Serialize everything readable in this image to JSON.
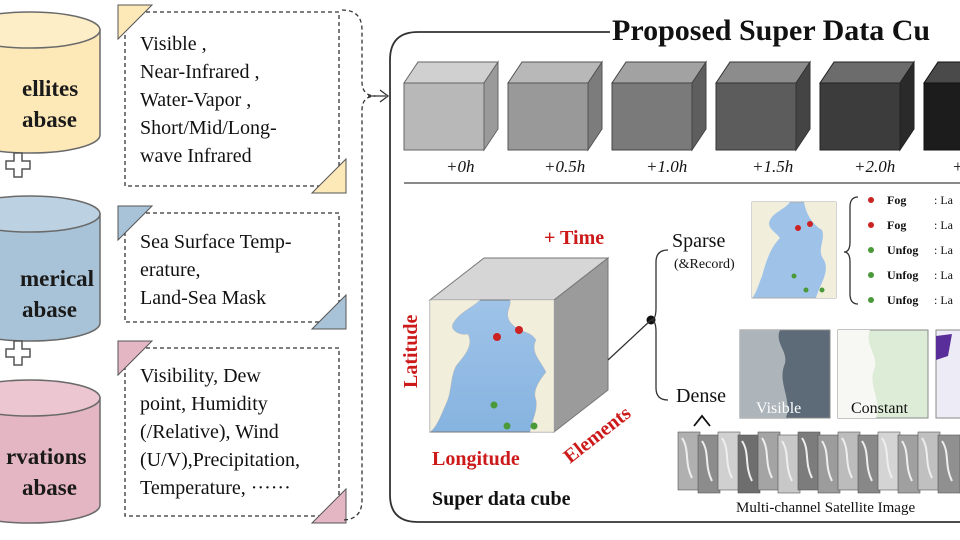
{
  "databases": [
    {
      "line1": "ellites",
      "line2": "abase",
      "color": "#fde8b8"
    },
    {
      "line1": "merical",
      "line2": "abase",
      "color": "#a8c3d8"
    },
    {
      "line1": "rvations",
      "line2": "abase",
      "color": "#e4b5c2"
    }
  ],
  "satellite_notes": [
    "Visible ,",
    "Near-Infrared ,",
    "Water-Vapor ,",
    "Short/Mid/Long-",
    "wave Infrared"
  ],
  "numerical_notes": [
    "Sea Surface Temp-",
    "erature,",
    "Land-Sea Mask"
  ],
  "observation_notes": [
    "Visibility, Dew",
    "point, Humidity",
    "(/Relative), Wind",
    "(U/V),Precipitation,",
    "Temperature, ······"
  ],
  "panel": {
    "title": "Proposed Super Data Cu",
    "time_labels": [
      "+0h",
      "+0.5h",
      "+1.0h",
      "+1.5h",
      "+2.0h",
      "+"
    ],
    "cube_axes": {
      "time": "+ Time",
      "latitude": "Latitude",
      "longitude": "Longitude",
      "elements": "Elements"
    },
    "cube_caption": "Super data cube",
    "sparse_label": "Sparse",
    "sparse_sub": "(&Record)",
    "dense_label": "Dense",
    "records": [
      {
        "label": "Fog",
        "value": ": La",
        "color": "#cc2222"
      },
      {
        "label": "Fog",
        "value": ": La",
        "color": "#cc2222"
      },
      {
        "label": "Unfog",
        "value": ": La",
        "color": "#4a9a3a"
      },
      {
        "label": "Unfog",
        "value": ": La",
        "color": "#4a9a3a"
      },
      {
        "label": "Unfog",
        "value": ": La",
        "color": "#4a9a3a"
      }
    ],
    "channel_labels": [
      "Visible",
      "Constant"
    ],
    "satellite_images_caption": "Multi-channel Satellite Image"
  },
  "colors": {
    "fog": "#cc2222",
    "unfog": "#4a9a3a",
    "axis_red": "#cc1a1a"
  }
}
